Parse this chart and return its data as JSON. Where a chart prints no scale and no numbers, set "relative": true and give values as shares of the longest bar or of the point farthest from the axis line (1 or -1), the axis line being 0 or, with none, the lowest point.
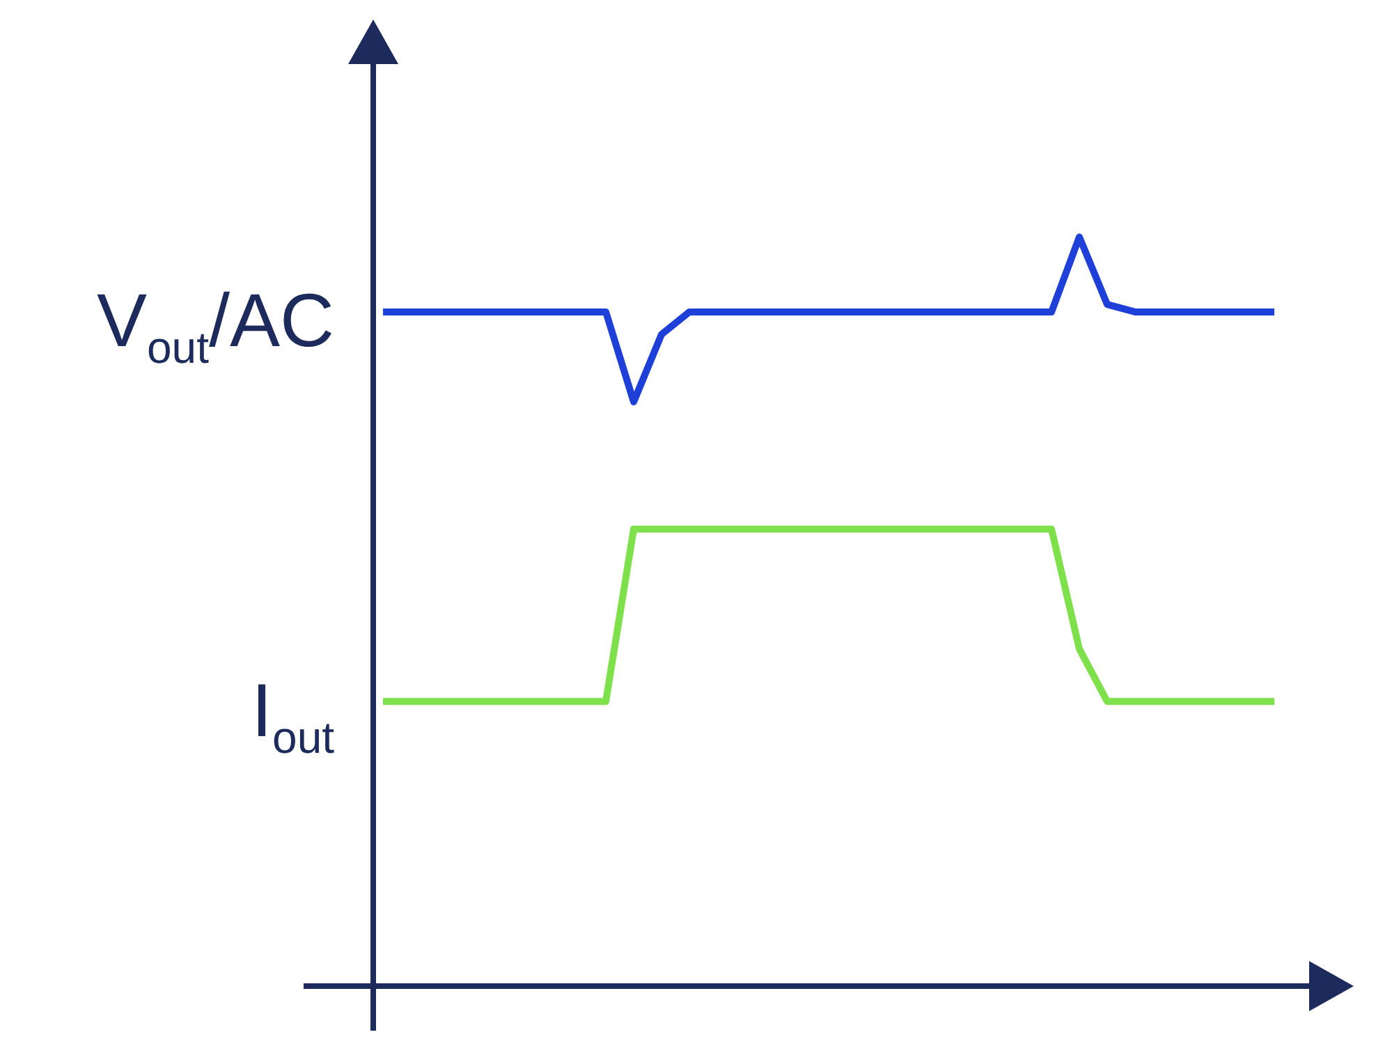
{
  "chart_data": {
    "type": "line",
    "relative": true,
    "categories": [
      null,
      null,
      null,
      null,
      null,
      null,
      null,
      null,
      null,
      null,
      null,
      null,
      null,
      null,
      null,
      null,
      null,
      null,
      null,
      null,
      null,
      null,
      null,
      null,
      null,
      null,
      null,
      null,
      null,
      null,
      null,
      null,
      null
    ],
    "series": [
      {
        "name": "V$_{out}$/AC",
        "color": "#1e3fd8",
        "values": [
          0.9,
          0.9,
          0.9,
          0.9,
          0.9,
          0.9,
          0.9,
          0.9,
          0.9,
          0.78,
          0.87,
          0.9,
          0.9,
          0.9,
          0.9,
          0.9,
          0.9,
          0.9,
          0.9,
          0.9,
          0.9,
          0.9,
          0.9,
          0.9,
          0.9,
          1,
          0.91,
          0.9,
          0.9,
          0.9,
          0.9,
          0.9,
          0.9
        ]
      },
      {
        "name": "I$_{out}$",
        "color": "#7ee04a",
        "values": [
          0.38,
          0.38,
          0.38,
          0.38,
          0.38,
          0.38,
          0.38,
          0.38,
          0.38,
          0.61,
          0.61,
          0.61,
          0.61,
          0.61,
          0.61,
          0.61,
          0.61,
          0.61,
          0.61,
          0.61,
          0.61,
          0.61,
          0.61,
          0.61,
          0.61,
          0.45,
          0.38,
          0.38,
          0.38,
          0.38,
          0.38,
          0.38,
          0.38
        ]
      }
    ]
  }
}
